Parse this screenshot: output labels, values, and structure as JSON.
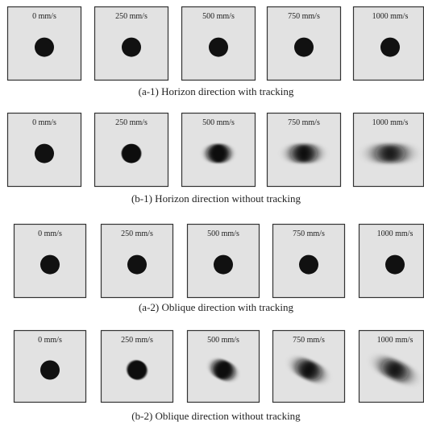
{
  "rows": [
    {
      "panels": [
        "0 mm/s",
        "250 mm/s",
        "500 mm/s",
        "750 mm/s",
        "1000 mm/s"
      ],
      "caption": "(a-1) Horizon direction with tracking"
    },
    {
      "panels": [
        "0 mm/s",
        "250 mm/s",
        "500 mm/s",
        "750 mm/s",
        "1000 mm/s"
      ],
      "caption": "(b-1) Horizon direction  without tracking"
    },
    {
      "panels": [
        "0 mm/s",
        "250 mm/s",
        "500 mm/s",
        "750 mm/s",
        "1000 mm/s"
      ],
      "caption": "(a-2) Oblique direction with tracking"
    },
    {
      "panels": [
        "0 mm/s",
        "250 mm/s",
        "500 mm/s",
        "750 mm/s",
        "1000 mm/s"
      ],
      "caption": "(b-2) Oblique direction  without tracking"
    }
  ]
}
